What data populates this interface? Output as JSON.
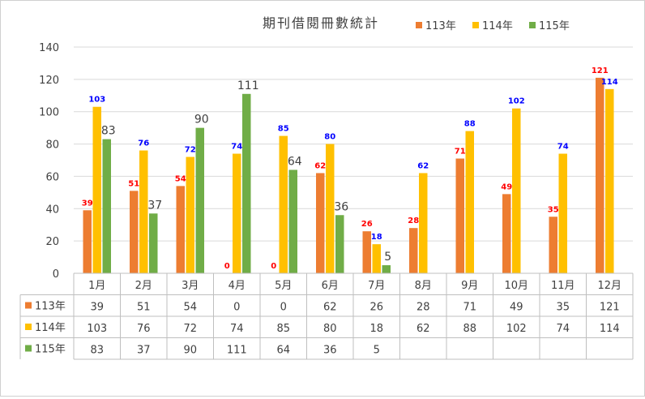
{
  "chart_data": {
    "type": "bar",
    "title": "期刊借閱冊數統計",
    "categories": [
      "1月",
      "2月",
      "3月",
      "4月",
      "5月",
      "6月",
      "7月",
      "8月",
      "9月",
      "10月",
      "11月",
      "12月"
    ],
    "ylim": [
      0,
      140
    ],
    "yticks": [
      0,
      20,
      40,
      60,
      80,
      100,
      120,
      140
    ],
    "grid": true,
    "legend_position": "top",
    "series": [
      {
        "name": "113年",
        "color": "#ED7D31",
        "label_color": "#FF0000",
        "values": [
          39,
          51,
          54,
          0,
          0,
          62,
          26,
          28,
          71,
          49,
          35,
          121
        ]
      },
      {
        "name": "114年",
        "color": "#FFC000",
        "label_color": "#0000FF",
        "values": [
          103,
          76,
          72,
          74,
          85,
          80,
          18,
          62,
          88,
          102,
          74,
          114
        ]
      },
      {
        "name": "115年",
        "color": "#70AD47",
        "label_color": "#404040",
        "values": [
          83,
          37,
          90,
          111,
          64,
          36,
          5,
          null,
          null,
          null,
          null,
          null
        ]
      }
    ]
  }
}
